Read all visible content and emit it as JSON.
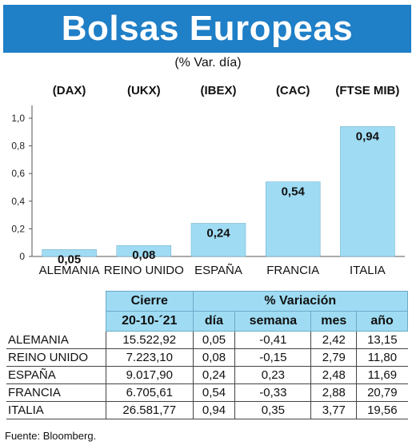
{
  "header": {
    "title": "Bolsas Europeas",
    "subtitle": "(% Var. día)"
  },
  "chart_data": {
    "type": "bar",
    "categories": [
      "ALEMANIA",
      "REINO UNIDO",
      "ESPAÑA",
      "FRANCIA",
      "ITALIA"
    ],
    "index_labels": [
      "(DAX)",
      "(UKX)",
      "(IBEX)",
      "(CAC)",
      "(FTSE MIB)"
    ],
    "values": [
      0.05,
      0.08,
      0.24,
      0.54,
      0.94
    ],
    "value_labels": [
      "0,05",
      "0,08",
      "0,24",
      "0,54",
      "0,94"
    ],
    "ylim": [
      0,
      1.0
    ],
    "yticks": [
      0,
      0.2,
      0.4,
      0.6,
      0.8,
      1.0
    ],
    "ytick_labels": [
      "0",
      "0,2",
      "0,4",
      "0,6",
      "0,8",
      "1,0"
    ],
    "bar_color": "#9fdcf3",
    "bar_edge_color": "#6aa9c9"
  },
  "table": {
    "header_cierre": "Cierre",
    "header_variacion": "% Variación",
    "header_date": "20-10-´21",
    "header_dia": "día",
    "header_semana": "semana",
    "header_mes": "mes",
    "header_ano": "año",
    "rows": [
      {
        "name": "ALEMANIA",
        "cierre": "15.522,92",
        "dia": "0,05",
        "semana": "-0,41",
        "mes": "2,42",
        "ano": "13,15"
      },
      {
        "name": "REINO UNIDO",
        "cierre": "7.223,10",
        "dia": "0,08",
        "semana": "-0,15",
        "mes": "2,79",
        "ano": "11,80"
      },
      {
        "name": "ESPAÑA",
        "cierre": "9.017,90",
        "dia": "0,24",
        "semana": "0,23",
        "mes": "2,48",
        "ano": "11,69"
      },
      {
        "name": "FRANCIA",
        "cierre": "6.705,61",
        "dia": "0,54",
        "semana": "-0,33",
        "mes": "2,88",
        "ano": "20,79"
      },
      {
        "name": "ITALIA",
        "cierre": "26.581,77",
        "dia": "0,94",
        "semana": "0,35",
        "mes": "3,77",
        "ano": "19,56"
      }
    ]
  },
  "source": "Fuente: Bloomberg."
}
